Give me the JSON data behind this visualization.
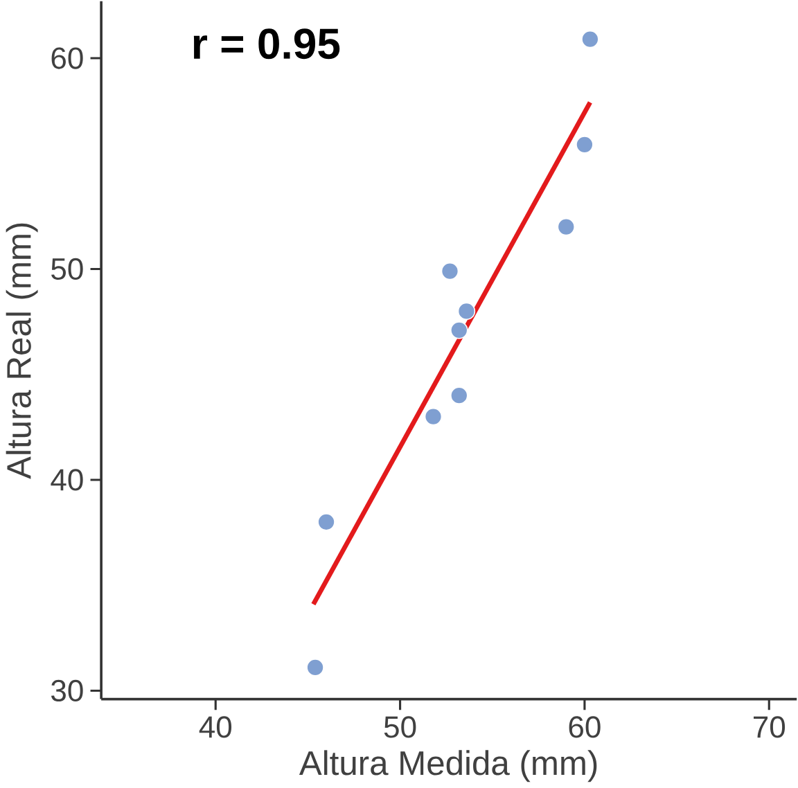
{
  "chart_data": {
    "type": "scatter",
    "xlabel": "Altura Medida (mm)",
    "ylabel": "Altura Real (mm)",
    "annotations": [
      "**r = 0.95**"
    ],
    "xlim": [
      33.8,
      71.5
    ],
    "ylim": [
      29.6,
      62.7
    ],
    "xticks": [
      40,
      50,
      60,
      70
    ],
    "yticks": [
      30,
      40,
      50,
      60
    ],
    "grid": false,
    "series": [
      {
        "marker": "circle",
        "color": "#7f9fd1",
        "x": [
          60.3,
          60.0,
          59.0,
          52.7,
          53.6,
          53.2,
          53.2,
          51.8,
          46.0,
          45.4
        ],
        "values": [
          60.9,
          55.9,
          52.0,
          49.9,
          48.0,
          47.1,
          44.0,
          43.0,
          38.0,
          31.1
        ]
      },
      {
        "type": "line",
        "marker": "none",
        "color": "#e31a1c",
        "x": [
          45.3,
          60.3
        ],
        "values": [
          34.1,
          57.9
        ]
      }
    ]
  }
}
